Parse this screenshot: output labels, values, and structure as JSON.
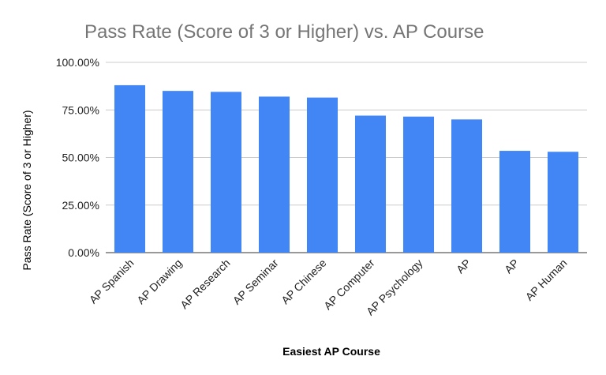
{
  "chart_data": {
    "type": "bar",
    "title": "Pass Rate (Score of 3 or Higher) vs. AP Course",
    "xlabel": "Easiest AP Course",
    "ylabel": "Pass Rate (Score of 3 or Higher)",
    "categories": [
      "AP Spanish",
      "AP Drawing",
      "AP Research",
      "AP Seminar",
      "AP Chinese",
      "AP Computer",
      "AP Psychology",
      "AP",
      "AP",
      "AP Human"
    ],
    "values": [
      0.88,
      0.85,
      0.845,
      0.82,
      0.815,
      0.72,
      0.715,
      0.7,
      0.535,
      0.53
    ],
    "yticks": [
      "0.00%",
      "25.00%",
      "50.00%",
      "75.00%",
      "100.00%"
    ],
    "ylim": [
      0,
      1
    ],
    "grid": true,
    "legend": "none",
    "bar_color": "#4285f4",
    "grid_color": "#cccccc"
  }
}
